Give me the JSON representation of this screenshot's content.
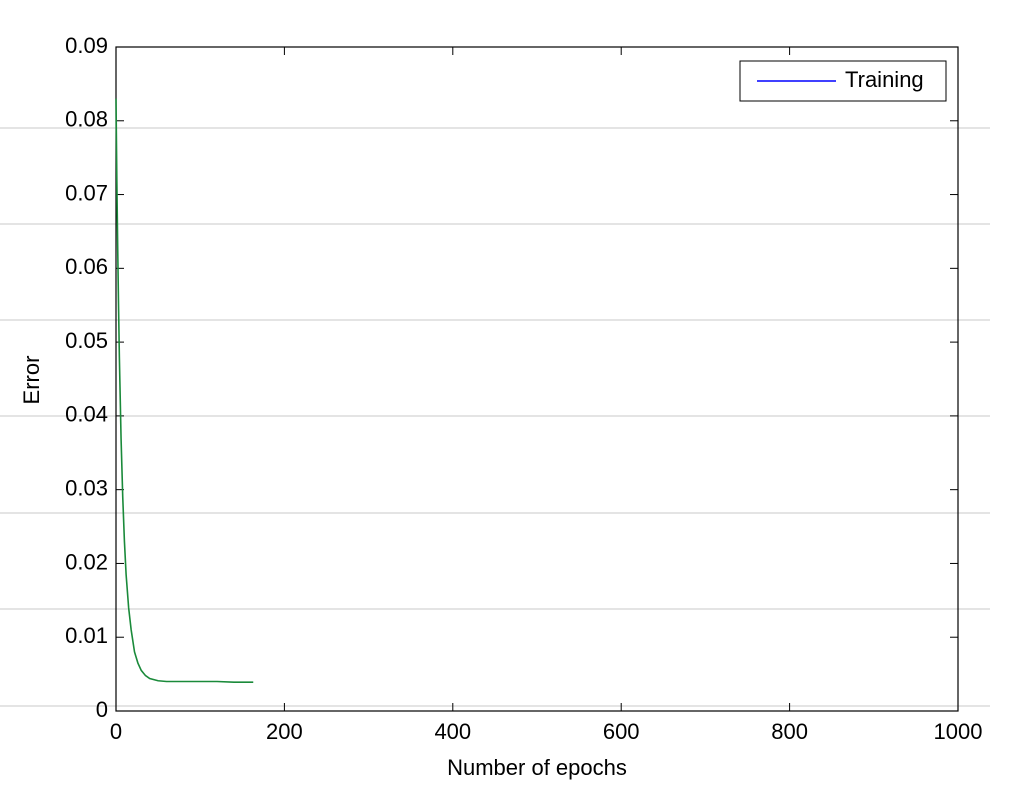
{
  "chart_data": {
    "type": "line",
    "xlabel": "Number of epochs",
    "ylabel": "Error",
    "xlim": [
      0,
      1000
    ],
    "xticks": [
      0,
      200,
      400,
      600,
      800,
      1000
    ],
    "ylim": [
      0,
      0.09
    ],
    "yticks": [
      0,
      0.01,
      0.02,
      0.03,
      0.04,
      0.05,
      0.06,
      0.07,
      0.08,
      0.09
    ],
    "legend": "upper right",
    "series": [
      {
        "name": "Training",
        "color": "#0000ff",
        "line_color": "#1a8a3a",
        "x": [
          0,
          1,
          2,
          3,
          4,
          6,
          8,
          10,
          12,
          15,
          18,
          22,
          26,
          30,
          35,
          40,
          50,
          60,
          80,
          100,
          120,
          140,
          163
        ],
        "values": [
          0.083,
          0.072,
          0.063,
          0.055,
          0.048,
          0.037,
          0.029,
          0.023,
          0.0185,
          0.014,
          0.011,
          0.008,
          0.0065,
          0.0055,
          0.0048,
          0.0044,
          0.0041,
          0.004,
          0.004,
          0.004,
          0.004,
          0.0039,
          0.0039
        ]
      }
    ]
  }
}
